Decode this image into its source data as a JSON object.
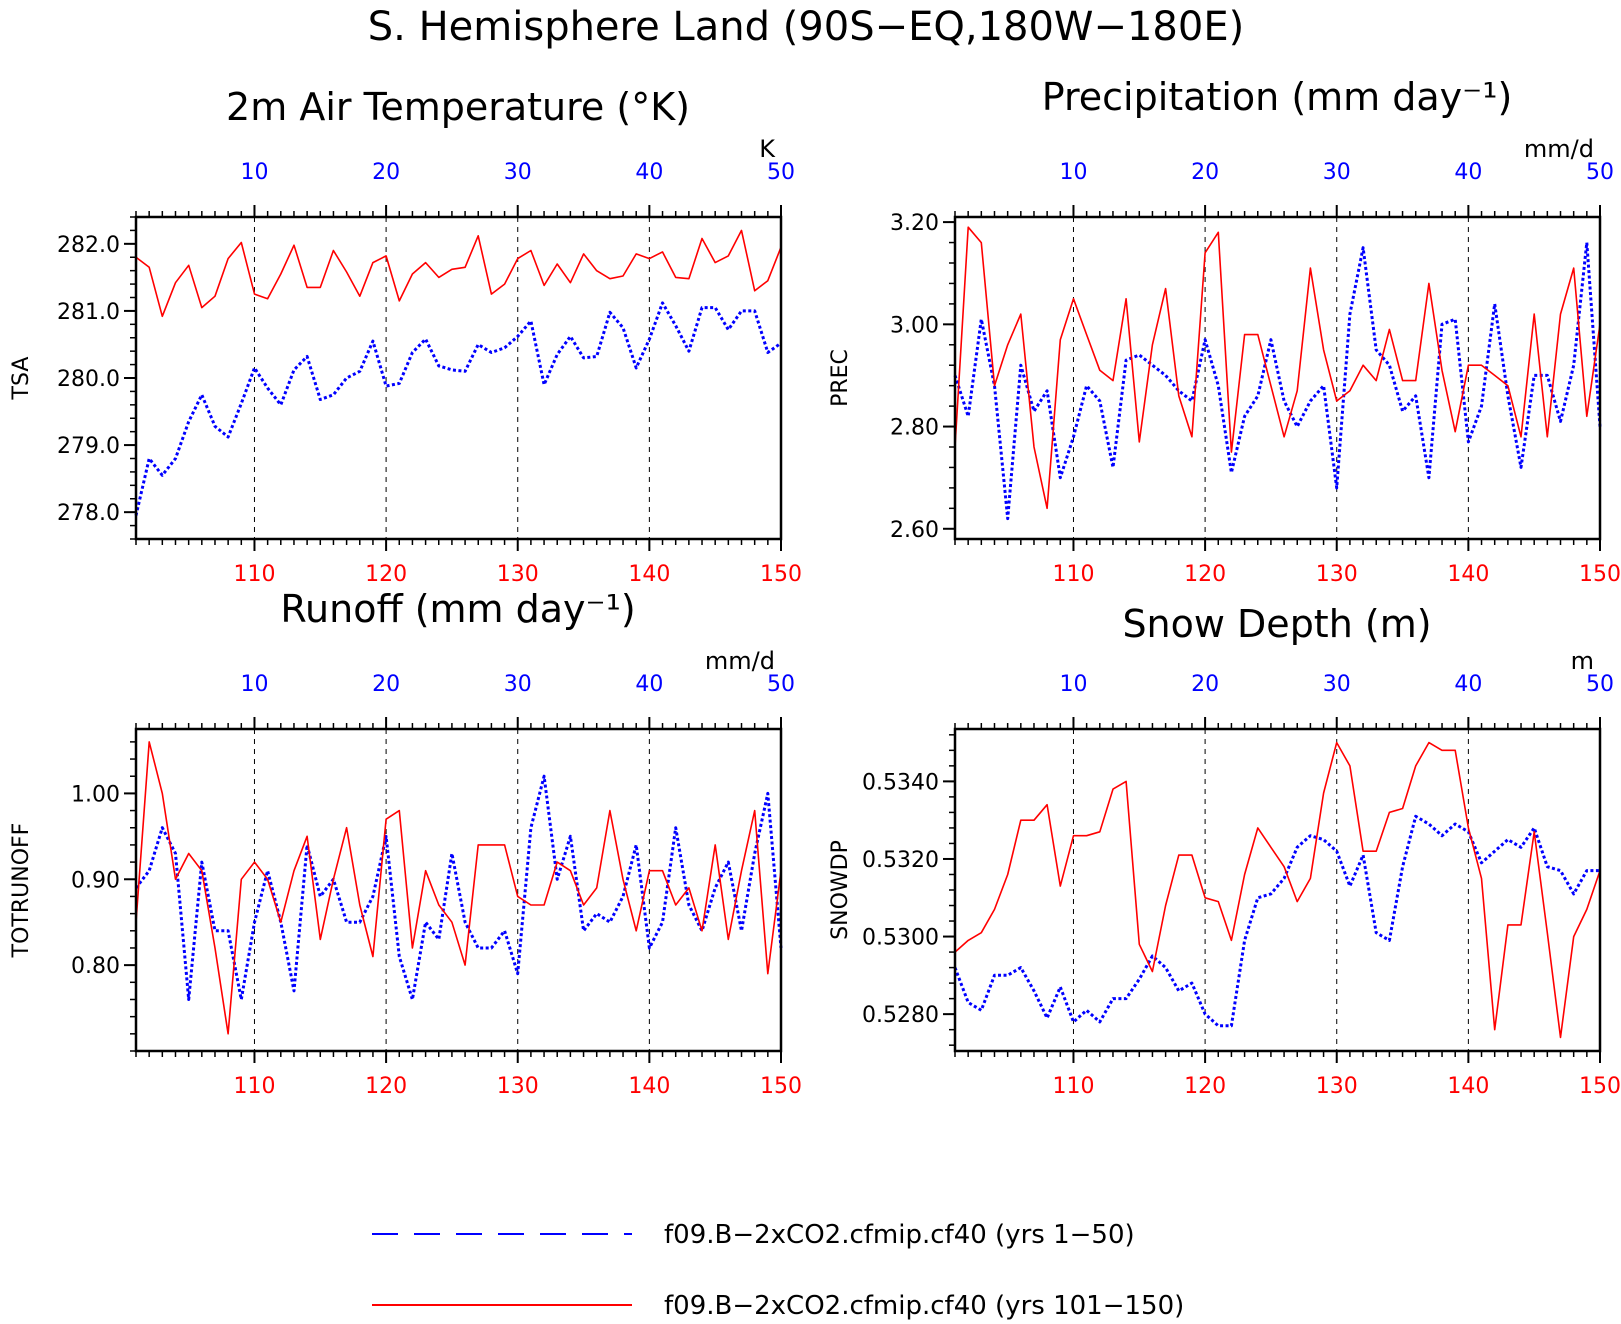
{
  "page_title": "S. Hemisphere Land (90S−EQ,180W−180E)",
  "colors": {
    "series_b": "#ff0000",
    "series_a": "#0000ff",
    "axis": "#000000",
    "grid": "#000000"
  },
  "legend": [
    {
      "label": "f09.B−2xCO2.cfmip.cf40 (yrs 1−50)",
      "color": "#0000ff",
      "style": "dashed"
    },
    {
      "label": "f09.B−2xCO2.cfmip.cf40 (yrs 101−150)",
      "color": "#ff0000",
      "style": "solid"
    }
  ],
  "chart_data": [
    {
      "type": "line",
      "title": "2m Air Temperature (°K)",
      "ylabel": "TSA",
      "units": "K",
      "ylim": [
        277.6,
        282.4
      ],
      "yticks": [
        278.0,
        279.0,
        280.0,
        281.0,
        282.0
      ],
      "ytick_labels": [
        "278.0",
        "279.0",
        "280.0",
        "281.0",
        "282.0"
      ],
      "ytick_minor": 0.2,
      "x_bottom": {
        "range": [
          101,
          150
        ],
        "ticks": [
          110,
          120,
          130,
          140,
          150
        ],
        "color": "#ff0000"
      },
      "x_top": {
        "range": [
          1,
          50
        ],
        "ticks": [
          10,
          20,
          30,
          40,
          50
        ],
        "color": "#0000ff"
      },
      "grid": "vertical dashed at ticks",
      "series": [
        {
          "x_axis": "top",
          "color": "#0000ff",
          "style": "dotted",
          "values": [
            277.95,
            278.8,
            278.55,
            278.8,
            279.35,
            279.75,
            279.28,
            279.12,
            279.62,
            280.15,
            279.85,
            279.6,
            280.12,
            280.32,
            279.68,
            279.75,
            280.0,
            280.1,
            280.55,
            279.88,
            279.92,
            280.38,
            280.58,
            280.18,
            280.12,
            280.1,
            280.5,
            280.38,
            280.45,
            280.62,
            280.85,
            279.9,
            280.35,
            280.62,
            280.3,
            280.32,
            280.98,
            280.75,
            280.15,
            280.58,
            281.12,
            280.78,
            280.4,
            281.05,
            281.05,
            280.72,
            281.0,
            281.0,
            280.38,
            280.52
          ]
        },
        {
          "x_axis": "bottom",
          "color": "#ff0000",
          "style": "solid",
          "values": [
            281.8,
            281.65,
            280.92,
            281.42,
            281.68,
            281.05,
            281.22,
            281.78,
            282.02,
            281.25,
            281.18,
            281.55,
            281.98,
            281.35,
            281.35,
            281.9,
            281.58,
            281.22,
            281.72,
            281.82,
            281.15,
            281.55,
            281.72,
            281.5,
            281.62,
            281.65,
            282.12,
            281.25,
            281.4,
            281.78,
            281.9,
            281.38,
            281.7,
            281.42,
            281.85,
            281.6,
            281.48,
            281.52,
            281.85,
            281.78,
            281.88,
            281.5,
            281.48,
            282.08,
            281.72,
            281.82,
            282.2,
            281.3,
            281.45,
            281.95
          ]
        }
      ]
    },
    {
      "type": "line",
      "title": "Precipitation (mm day⁻¹)",
      "ylabel": "PREC",
      "units": "mm/d",
      "ylim": [
        2.58,
        3.21
      ],
      "yticks": [
        2.6,
        2.8,
        3.0,
        3.2
      ],
      "ytick_labels": [
        "2.60",
        "2.80",
        "3.00",
        "3.20"
      ],
      "ytick_minor": 0.04,
      "x_bottom": {
        "range": [
          101,
          150
        ],
        "ticks": [
          110,
          120,
          130,
          140,
          150
        ],
        "color": "#ff0000"
      },
      "x_top": {
        "range": [
          1,
          50
        ],
        "ticks": [
          10,
          20,
          30,
          40,
          50
        ],
        "color": "#0000ff"
      },
      "grid": "vertical dashed at ticks",
      "series": [
        {
          "x_axis": "top",
          "color": "#0000ff",
          "style": "dotted",
          "values": [
            2.9,
            2.82,
            3.01,
            2.88,
            2.62,
            2.92,
            2.83,
            2.87,
            2.7,
            2.78,
            2.88,
            2.85,
            2.72,
            2.93,
            2.94,
            2.92,
            2.9,
            2.87,
            2.85,
            2.97,
            2.88,
            2.71,
            2.82,
            2.86,
            2.97,
            2.85,
            2.8,
            2.85,
            2.88,
            2.68,
            3.02,
            3.15,
            2.95,
            2.92,
            2.83,
            2.86,
            2.7,
            3.0,
            3.01,
            2.77,
            2.84,
            3.04,
            2.86,
            2.72,
            2.9,
            2.9,
            2.81,
            2.92,
            3.16,
            2.8
          ]
        },
        {
          "x_axis": "bottom",
          "color": "#ff0000",
          "style": "solid",
          "values": [
            2.76,
            3.19,
            3.16,
            2.88,
            2.96,
            3.02,
            2.76,
            2.64,
            2.97,
            3.05,
            2.98,
            2.91,
            2.89,
            3.05,
            2.77,
            2.96,
            3.07,
            2.86,
            2.78,
            3.14,
            3.18,
            2.75,
            2.98,
            2.98,
            2.88,
            2.78,
            2.87,
            3.11,
            2.95,
            2.85,
            2.87,
            2.92,
            2.89,
            2.99,
            2.89,
            2.89,
            3.08,
            2.91,
            2.79,
            2.92,
            2.92,
            2.9,
            2.88,
            2.78,
            3.02,
            2.78,
            3.02,
            3.11,
            2.82,
            3.0
          ]
        }
      ]
    },
    {
      "type": "line",
      "title": "Runoff (mm day⁻¹)",
      "ylabel": "TOTRUNOFF",
      "units": "mm/d",
      "ylim": [
        0.7,
        1.075
      ],
      "yticks": [
        0.8,
        0.9,
        1.0
      ],
      "ytick_labels": [
        "0.80",
        "0.90",
        "1.00"
      ],
      "ytick_minor": 0.02,
      "x_bottom": {
        "range": [
          101,
          150
        ],
        "ticks": [
          110,
          120,
          130,
          140,
          150
        ],
        "color": "#ff0000"
      },
      "x_top": {
        "range": [
          1,
          50
        ],
        "ticks": [
          10,
          20,
          30,
          40,
          50
        ],
        "color": "#0000ff"
      },
      "grid": "vertical dashed at ticks",
      "series": [
        {
          "x_axis": "top",
          "color": "#0000ff",
          "style": "dotted",
          "values": [
            0.89,
            0.91,
            0.96,
            0.93,
            0.76,
            0.92,
            0.84,
            0.84,
            0.76,
            0.85,
            0.91,
            0.85,
            0.77,
            0.94,
            0.88,
            0.9,
            0.85,
            0.85,
            0.88,
            0.95,
            0.81,
            0.76,
            0.85,
            0.83,
            0.93,
            0.85,
            0.82,
            0.82,
            0.84,
            0.79,
            0.96,
            1.02,
            0.9,
            0.95,
            0.84,
            0.86,
            0.85,
            0.88,
            0.94,
            0.82,
            0.85,
            0.96,
            0.87,
            0.84,
            0.89,
            0.92,
            0.84,
            0.93,
            1.0,
            0.82
          ]
        },
        {
          "x_axis": "bottom",
          "color": "#ff0000",
          "style": "solid",
          "values": [
            0.85,
            1.06,
            1.0,
            0.9,
            0.93,
            0.91,
            0.82,
            0.72,
            0.9,
            0.92,
            0.9,
            0.85,
            0.91,
            0.95,
            0.83,
            0.9,
            0.96,
            0.87,
            0.81,
            0.97,
            0.98,
            0.82,
            0.91,
            0.87,
            0.85,
            0.8,
            0.94,
            0.94,
            0.94,
            0.88,
            0.87,
            0.87,
            0.92,
            0.91,
            0.87,
            0.89,
            0.98,
            0.9,
            0.84,
            0.91,
            0.91,
            0.87,
            0.89,
            0.84,
            0.94,
            0.83,
            0.91,
            0.98,
            0.79,
            0.91
          ]
        }
      ]
    },
    {
      "type": "line",
      "title": "Snow Depth (m)",
      "ylabel": "SNOWDP",
      "units": "m",
      "ylim": [
        0.52705,
        0.53535
      ],
      "yticks": [
        0.528,
        0.53,
        0.532,
        0.534
      ],
      "ytick_labels": [
        "0.5280",
        "0.5300",
        "0.5320",
        "0.5340"
      ],
      "ytick_minor": 0.0004,
      "x_bottom": {
        "range": [
          101,
          150
        ],
        "ticks": [
          110,
          120,
          130,
          140,
          150
        ],
        "color": "#ff0000"
      },
      "x_top": {
        "range": [
          1,
          50
        ],
        "ticks": [
          10,
          20,
          30,
          40,
          50
        ],
        "color": "#0000ff"
      },
      "grid": "vertical dashed at ticks",
      "series": [
        {
          "x_axis": "top",
          "color": "#0000ff",
          "style": "dotted",
          "values": [
            0.5292,
            0.5283,
            0.5281,
            0.529,
            0.529,
            0.5292,
            0.5286,
            0.5279,
            0.5287,
            0.5278,
            0.5281,
            0.5278,
            0.5284,
            0.5284,
            0.5289,
            0.5295,
            0.5292,
            0.5286,
            0.5288,
            0.528,
            0.5277,
            0.5277,
            0.5299,
            0.531,
            0.5311,
            0.5315,
            0.5323,
            0.5326,
            0.5325,
            0.5322,
            0.5313,
            0.5321,
            0.5301,
            0.5299,
            0.5318,
            0.5331,
            0.5329,
            0.5326,
            0.5329,
            0.5327,
            0.5319,
            0.5322,
            0.5325,
            0.5323,
            0.5328,
            0.5318,
            0.5317,
            0.5311,
            0.5317,
            0.5317
          ]
        },
        {
          "x_axis": "bottom",
          "color": "#ff0000",
          "style": "solid",
          "values": [
            0.5296,
            0.5299,
            0.5301,
            0.5307,
            0.5316,
            0.533,
            0.533,
            0.5334,
            0.5313,
            0.5326,
            0.5326,
            0.5327,
            0.5338,
            0.534,
            0.5298,
            0.5291,
            0.5308,
            0.5321,
            0.5321,
            0.531,
            0.5309,
            0.5299,
            0.5316,
            0.5328,
            0.5323,
            0.5318,
            0.5309,
            0.5315,
            0.5337,
            0.535,
            0.5344,
            0.5322,
            0.5322,
            0.5332,
            0.5333,
            0.5344,
            0.535,
            0.5348,
            0.5348,
            0.5328,
            0.5315,
            0.5276,
            0.5303,
            0.5303,
            0.5327,
            0.5301,
            0.5274,
            0.53,
            0.5307,
            0.5317
          ]
        }
      ]
    }
  ]
}
